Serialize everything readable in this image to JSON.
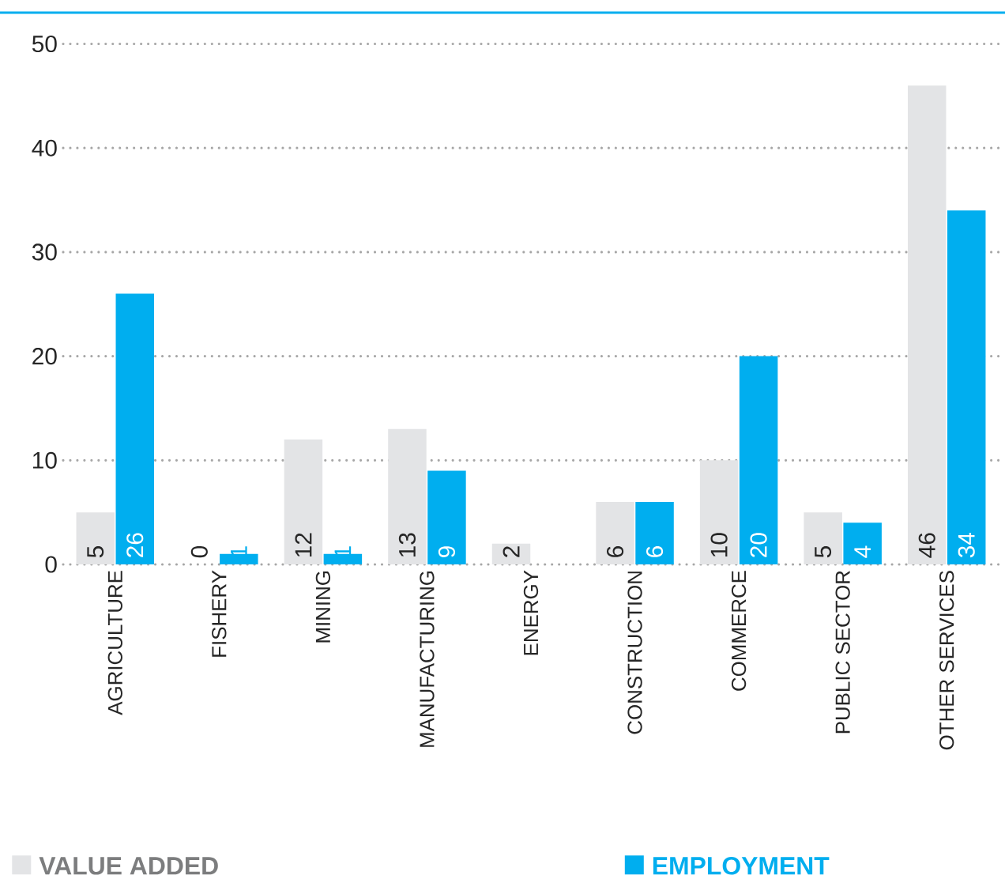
{
  "chart_data": {
    "type": "bar",
    "categories": [
      "AGRICULTURE",
      "FISHERY",
      "MINING",
      "MANUFACTURING",
      "ENERGY",
      "CONSTRUCTION",
      "COMMERCE",
      "PUBLIC SECTOR",
      "OTHER SERVICES"
    ],
    "series": [
      {
        "name": "VALUE ADDED",
        "color": "#e3e4e6",
        "values": [
          5,
          0,
          12,
          13,
          2,
          6,
          10,
          5,
          46
        ]
      },
      {
        "name": "EMPLOYMENT",
        "color": "#00aeef",
        "values": [
          26,
          1,
          1,
          9,
          null,
          6,
          20,
          4,
          34
        ]
      }
    ],
    "ylim": [
      0,
      53
    ],
    "yticks": [
      0,
      10,
      20,
      30,
      40,
      50
    ],
    "grid": "y",
    "legend": "bottom",
    "data_labels": true
  }
}
